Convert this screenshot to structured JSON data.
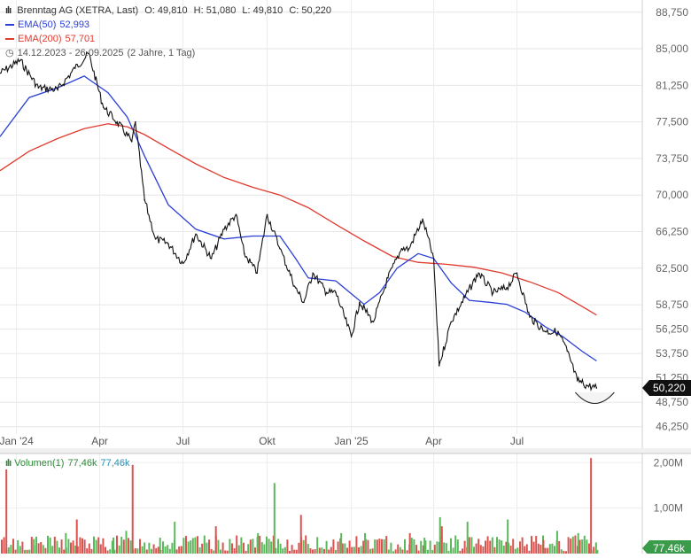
{
  "header": {
    "title": "Brenntag AG (XETRA, Last)",
    "open": "O: 49,810",
    "high": "H: 51,080",
    "low": "L: 49,810",
    "close": "C: 50,220",
    "ema50_label": "EMA(50)",
    "ema50_value": "52,993",
    "ema200_label": "EMA(200)",
    "ema200_value": "57,701",
    "range": "14.12.2023 - 26.09.2025",
    "period": "(2 Jahre, 1 Tag)",
    "last_price_tag": "50,220",
    "volume_label": "Volumen(1)",
    "volume_value1": "77,46k",
    "volume_value2": "77,46k",
    "volume_tag": "77,46k"
  },
  "colors": {
    "price": "#111111",
    "ema50": "#2a3ed8",
    "ema200": "#e03a2e",
    "vol_up": "#5cb85c",
    "vol_down": "#d9534f",
    "tag_bg": "#111111"
  },
  "chart_data": {
    "type": "line",
    "price_axis": {
      "ticks": [
        "88,750",
        "85,000",
        "81,250",
        "77,500",
        "73,750",
        "70,000",
        "66,250",
        "62,500",
        "58,750",
        "56,250",
        "53,750",
        "51,250",
        "48,750",
        "46,250"
      ],
      "tick_values": [
        88.75,
        85.0,
        81.25,
        77.5,
        73.75,
        70.0,
        66.25,
        62.5,
        58.75,
        56.25,
        53.75,
        51.25,
        48.75,
        46.25
      ],
      "ylim": [
        45.5,
        90.0
      ]
    },
    "time_axis": {
      "labels": [
        "Jan '24",
        "Apr",
        "Jul",
        "Okt",
        "Jan '25",
        "Apr",
        "Jul"
      ],
      "dates": [
        "2024-01-01",
        "2024-04-01",
        "2024-07-01",
        "2024-10-01",
        "2025-01-01",
        "2025-04-01",
        "2025-07-01"
      ],
      "xlim": [
        "2023-12-14",
        "2025-11-15"
      ]
    },
    "series": [
      {
        "name": "Brenntag AG (XETRA, Last)",
        "dates": [
          "2023-12-14",
          "2024-01-05",
          "2024-01-25",
          "2024-02-15",
          "2024-03-05",
          "2024-03-20",
          "2024-04-05",
          "2024-04-20",
          "2024-05-06",
          "2024-05-10",
          "2024-05-20",
          "2024-06-01",
          "2024-06-15",
          "2024-07-01",
          "2024-07-15",
          "2024-08-01",
          "2024-08-15",
          "2024-08-28",
          "2024-09-06",
          "2024-09-20",
          "2024-10-01",
          "2024-10-15",
          "2024-11-01",
          "2024-11-10",
          "2024-11-20",
          "2024-12-05",
          "2024-12-15",
          "2025-01-01",
          "2025-01-10",
          "2025-01-25",
          "2025-02-10",
          "2025-02-25",
          "2025-03-05",
          "2025-03-20",
          "2025-04-01",
          "2025-04-07",
          "2025-04-20",
          "2025-05-05",
          "2025-05-20",
          "2025-06-05",
          "2025-06-20",
          "2025-07-01",
          "2025-07-15",
          "2025-08-01",
          "2025-08-15",
          "2025-08-25",
          "2025-09-05",
          "2025-09-15",
          "2025-09-26"
        ],
        "values": [
          82.5,
          83.8,
          81.0,
          80.8,
          83.0,
          84.5,
          79.0,
          77.5,
          75.5,
          77.5,
          69.5,
          65.5,
          65.0,
          63.0,
          66.0,
          63.5,
          66.5,
          68.0,
          64.0,
          62.0,
          68.0,
          64.5,
          60.5,
          59.0,
          62.0,
          60.0,
          60.0,
          55.5,
          59.0,
          57.0,
          61.5,
          64.5,
          64.5,
          67.5,
          63.5,
          52.5,
          57.0,
          59.5,
          62.0,
          60.0,
          60.5,
          62.0,
          57.5,
          56.0,
          56.0,
          54.0,
          51.0,
          50.5,
          50.22
        ]
      },
      {
        "name": "EMA(50)",
        "dates": [
          "2023-12-14",
          "2024-01-15",
          "2024-02-15",
          "2024-03-15",
          "2024-04-10",
          "2024-05-01",
          "2024-05-20",
          "2024-06-15",
          "2024-07-15",
          "2024-08-15",
          "2024-09-15",
          "2024-10-15",
          "2024-11-01",
          "2024-11-15",
          "2024-12-15",
          "2025-01-15",
          "2025-02-01",
          "2025-02-20",
          "2025-03-15",
          "2025-04-01",
          "2025-04-20",
          "2025-05-10",
          "2025-06-01",
          "2025-06-20",
          "2025-07-10",
          "2025-08-01",
          "2025-08-20",
          "2025-09-10",
          "2025-09-26"
        ],
        "values": [
          76.0,
          80.0,
          81.0,
          82.2,
          80.5,
          78.0,
          74.0,
          69.0,
          66.5,
          65.5,
          65.8,
          65.8,
          63.5,
          61.5,
          61.2,
          58.8,
          60.0,
          62.5,
          64.0,
          63.5,
          61.0,
          59.2,
          59.0,
          58.8,
          58.0,
          56.5,
          55.5,
          54.0,
          52.99
        ]
      },
      {
        "name": "EMA(200)",
        "dates": [
          "2023-12-14",
          "2024-01-15",
          "2024-02-15",
          "2024-03-15",
          "2024-04-10",
          "2024-05-01",
          "2024-05-20",
          "2024-06-15",
          "2024-07-15",
          "2024-08-15",
          "2024-09-15",
          "2024-10-15",
          "2024-11-15",
          "2024-12-15",
          "2025-01-15",
          "2025-02-15",
          "2025-03-15",
          "2025-04-15",
          "2025-05-15",
          "2025-06-15",
          "2025-07-15",
          "2025-08-15",
          "2025-09-10",
          "2025-09-26"
        ],
        "values": [
          72.5,
          74.5,
          75.8,
          76.8,
          77.3,
          77.0,
          76.2,
          74.8,
          73.2,
          71.8,
          70.8,
          70.0,
          68.7,
          67.0,
          65.3,
          63.7,
          63.1,
          62.9,
          62.6,
          62.0,
          61.1,
          60.0,
          58.6,
          57.7
        ]
      }
    ],
    "volume": {
      "label": "Volumen(1)",
      "ticks": [
        "2,00M",
        "1,00M"
      ],
      "tick_values": [
        2.0,
        1.0
      ],
      "ylim": [
        0,
        2.2
      ],
      "dates": [
        "2023-12-20",
        "2024-01-19",
        "2024-02-23",
        "2024-03-06",
        "2024-04-15",
        "2024-04-29",
        "2024-05-06",
        "2024-06-05",
        "2024-06-21",
        "2024-08-05",
        "2024-09-20",
        "2024-10-08",
        "2024-11-06",
        "2024-12-20",
        "2025-01-15",
        "2025-03-05",
        "2025-03-21",
        "2025-04-07",
        "2025-04-09",
        "2025-05-07",
        "2025-06-20",
        "2025-07-29",
        "2025-08-13",
        "2025-09-05",
        "2025-09-19",
        "2025-09-26"
      ],
      "values": [
        1.85,
        0.32,
        0.45,
        0.75,
        0.35,
        0.5,
        1.95,
        0.35,
        0.7,
        0.6,
        0.45,
        1.55,
        0.85,
        0.45,
        0.45,
        0.45,
        0.35,
        0.8,
        0.6,
        0.7,
        0.75,
        0.3,
        0.5,
        0.45,
        2.1,
        0.08
      ]
    }
  }
}
